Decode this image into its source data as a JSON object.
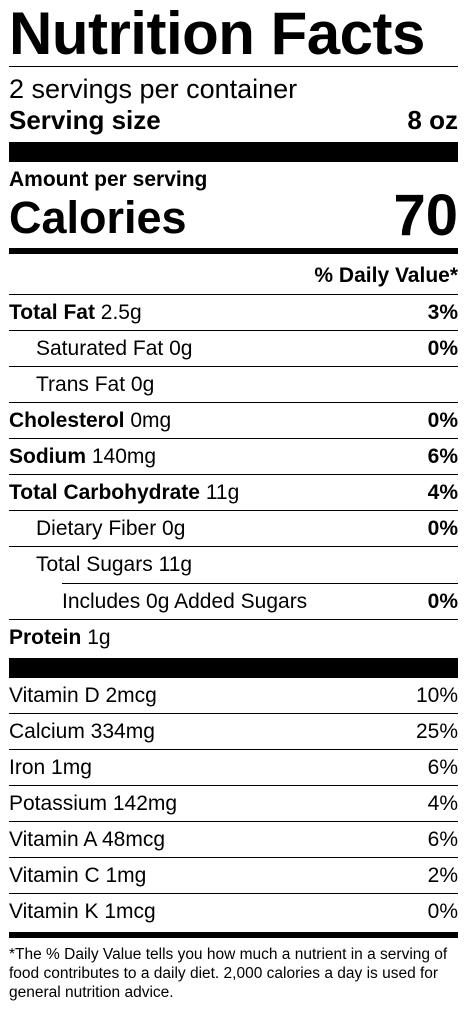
{
  "title": "Nutrition Facts",
  "servings_per_container": "2 servings per container",
  "serving_size": {
    "label": "Serving size",
    "value": "8 oz"
  },
  "amount_per_serving": "Amount per serving",
  "calories": {
    "label": "Calories",
    "value": "70"
  },
  "daily_value_header": "% Daily Value*",
  "nutrients": [
    {
      "name": "Total Fat",
      "amount": "2.5g",
      "dv": "3%"
    },
    {
      "name": "Saturated Fat",
      "amount": "0g",
      "dv": "0%"
    },
    {
      "name": "Trans Fat",
      "amount": "0g",
      "dv": ""
    },
    {
      "name": "Cholesterol",
      "amount": "0mg",
      "dv": "0%"
    },
    {
      "name": "Sodium",
      "amount": "140mg",
      "dv": "6%"
    },
    {
      "name": "Total Carbohydrate",
      "amount": "11g",
      "dv": "4%"
    },
    {
      "name": "Dietary Fiber",
      "amount": "0g",
      "dv": "0%"
    },
    {
      "name": "Total Sugars",
      "amount": "11g",
      "dv": ""
    },
    {
      "name": "Includes 0g Added Sugars",
      "amount": "",
      "dv": "0%"
    },
    {
      "name": "Protein",
      "amount": "1g",
      "dv": ""
    }
  ],
  "vitamins": [
    {
      "name": "Vitamin D 2mcg",
      "dv": "10%"
    },
    {
      "name": "Calcium 334mg",
      "dv": "25%"
    },
    {
      "name": "Iron 1mg",
      "dv": "6%"
    },
    {
      "name": "Potassium 142mg",
      "dv": "4%"
    },
    {
      "name": "Vitamin A 48mcg",
      "dv": "6%"
    },
    {
      "name": "Vitamin C 1mg",
      "dv": "2%"
    },
    {
      "name": "Vitamin K 1mcg",
      "dv": "0%"
    }
  ],
  "footnote": "*The % Daily Value tells you how much a nutrient in a serving of food contributes to a daily diet. 2,000 calories a day is used for general nutrition advice."
}
